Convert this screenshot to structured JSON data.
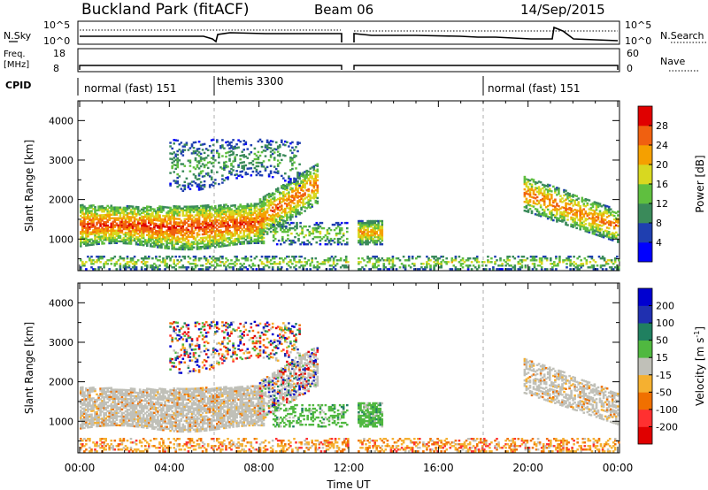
{
  "header": {
    "station": "Buckland Park (fitACF)",
    "beam": "Beam 06",
    "date": "14/Sep/2015"
  },
  "status_panels": {
    "nsky_label": "N.Sky",
    "nsky_ticks": [
      "10^5",
      "10^0"
    ],
    "nsearch_label": "N.Search",
    "nsearch_ticks": [
      "10^5",
      "10^0"
    ],
    "freq_label": "Freq.",
    "freq_unit": "[MHz]",
    "freq_ticks": [
      "18",
      "8"
    ],
    "nave_label": "Nave",
    "nave_ticks": [
      "60",
      "0"
    ],
    "cpid_label": "CPID",
    "cpid_segments": [
      {
        "label": "normal (fast) 151",
        "start_hour": 0,
        "end_hour": 6
      },
      {
        "label": "themis 3300",
        "start_hour": 6,
        "end_hour": 18
      },
      {
        "label": "normal (fast) 151",
        "start_hour": 18,
        "end_hour": 24
      }
    ]
  },
  "chart_data": [
    {
      "type": "heatmap",
      "title": "",
      "ylabel": "Slant Range [km]",
      "xlabel": "",
      "xlim": [
        0,
        24
      ],
      "ylim": [
        200,
        4500
      ],
      "yticks": [
        "1000",
        "2000",
        "3000",
        "4000"
      ],
      "colorbar": {
        "label": "Power [dB]",
        "ticks": [
          "4",
          "8",
          "12",
          "16",
          "20",
          "24",
          "28"
        ],
        "range": [
          0,
          30
        ],
        "colors": [
          "#0000ff",
          "#1f3fb0",
          "#3a8a5a",
          "#5fbf3f",
          "#d8d820",
          "#f5a000",
          "#f06010",
          "#e00000"
        ]
      },
      "data_gap_hours": [
        12.0,
        12.4
      ]
    },
    {
      "type": "heatmap",
      "title": "",
      "ylabel": "Slant Range [km]",
      "xlabel": "Time UT",
      "xlim": [
        0,
        24
      ],
      "ylim": [
        200,
        4500
      ],
      "yticks": [
        "1000",
        "2000",
        "3000",
        "4000"
      ],
      "xticks": [
        "00:00",
        "04:00",
        "08:00",
        "12:00",
        "16:00",
        "20:00",
        "00:00"
      ],
      "colorbar": {
        "label": "Velocity [m s",
        "label_sup": "-1",
        "label_end": "]",
        "ticks": [
          "-200",
          "-100",
          "-50",
          "-15",
          "15",
          "50",
          "100",
          "200"
        ],
        "range": [
          -250,
          250
        ],
        "colors": [
          "#e00000",
          "#ff3030",
          "#f07000",
          "#f5b030",
          "#c0c0b8",
          "#50b840",
          "#208060",
          "#2030b0",
          "#0000d0"
        ]
      },
      "data_gap_hours": [
        12.0,
        12.4
      ]
    }
  ]
}
